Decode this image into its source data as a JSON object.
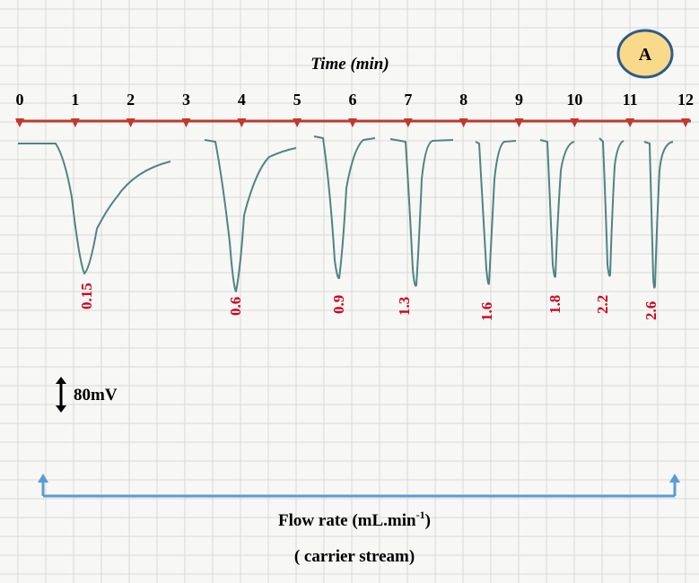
{
  "panel_label": "A",
  "time_axis": {
    "title": "Time (min)",
    "ticks": [
      "0",
      "1",
      "2",
      "3",
      "4",
      "5",
      "6",
      "7",
      "8",
      "9",
      "10",
      "11",
      "12"
    ]
  },
  "flow_rates": [
    "0.15",
    "0.6",
    "0.9",
    "1.3",
    "1.6",
    "1.8",
    "2.2",
    "2.6"
  ],
  "scale_bar": "80mV",
  "flow_rate_label": {
    "text": "Flow rate (mL.min",
    "superscript": "-1",
    "close": ")"
  },
  "carrier_label": "( carrier stream)"
}
